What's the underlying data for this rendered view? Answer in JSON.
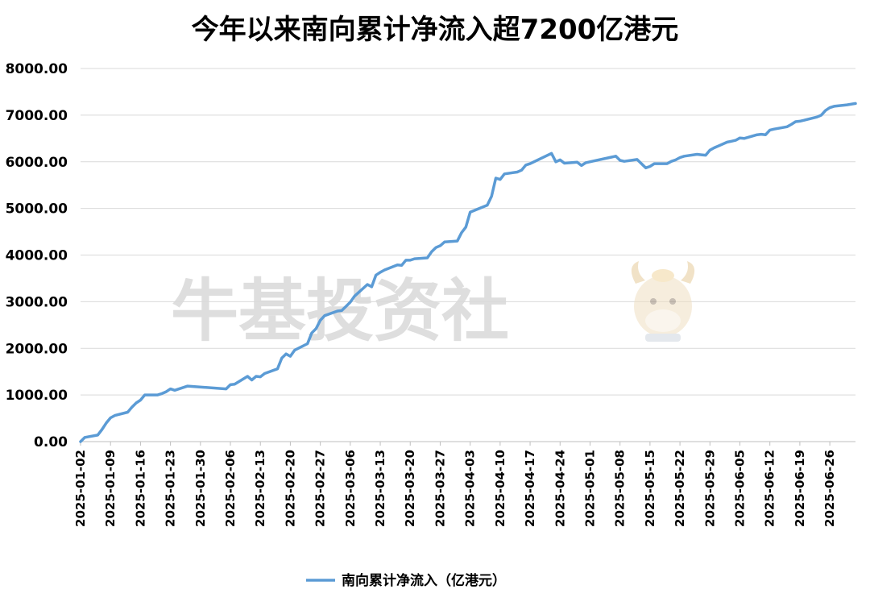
{
  "chart_data": {
    "type": "line",
    "title": "今年以来南向累计净流入超7200亿港元",
    "xlabel": "",
    "ylabel": "",
    "ylim": [
      0,
      8000
    ],
    "y_ticks": [
      "0.00",
      "1000.00",
      "2000.00",
      "3000.00",
      "4000.00",
      "5000.00",
      "6000.00",
      "7000.00",
      "8000.00"
    ],
    "x_ticks": [
      "2025-01-02",
      "2025-01-09",
      "2025-01-16",
      "2025-01-23",
      "2025-01-30",
      "2025-02-06",
      "2025-02-13",
      "2025-02-20",
      "2025-02-27",
      "2025-03-06",
      "2025-03-13",
      "2025-03-20",
      "2025-03-27",
      "2025-04-03",
      "2025-04-10",
      "2025-04-17",
      "2025-04-24",
      "2025-05-01",
      "2025-05-08",
      "2025-05-15",
      "2025-05-22",
      "2025-05-29",
      "2025-06-05",
      "2025-06-12",
      "2025-06-19",
      "2025-06-26"
    ],
    "x_range": [
      "2025-01-02",
      "2025-07-02"
    ],
    "grid": true,
    "legend_position": "bottom",
    "series": [
      {
        "name": "南向累计净流入（亿港元）",
        "color": "#5b9bd5",
        "points": [
          [
            "2025-01-02",
            0
          ],
          [
            "2025-01-03",
            90
          ],
          [
            "2025-01-06",
            140
          ],
          [
            "2025-01-07",
            260
          ],
          [
            "2025-01-08",
            400
          ],
          [
            "2025-01-09",
            510
          ],
          [
            "2025-01-10",
            560
          ],
          [
            "2025-01-13",
            630
          ],
          [
            "2025-01-14",
            740
          ],
          [
            "2025-01-15",
            830
          ],
          [
            "2025-01-16",
            890
          ],
          [
            "2025-01-17",
            1000
          ],
          [
            "2025-01-20",
            1000
          ],
          [
            "2025-01-21",
            1030
          ],
          [
            "2025-01-22",
            1070
          ],
          [
            "2025-01-23",
            1130
          ],
          [
            "2025-01-24",
            1100
          ],
          [
            "2025-01-27",
            1190
          ],
          [
            "2025-02-05",
            1130
          ],
          [
            "2025-02-06",
            1220
          ],
          [
            "2025-02-07",
            1230
          ],
          [
            "2025-02-10",
            1400
          ],
          [
            "2025-02-11",
            1320
          ],
          [
            "2025-02-12",
            1400
          ],
          [
            "2025-02-13",
            1390
          ],
          [
            "2025-02-14",
            1460
          ],
          [
            "2025-02-17",
            1560
          ],
          [
            "2025-02-18",
            1790
          ],
          [
            "2025-02-19",
            1880
          ],
          [
            "2025-02-20",
            1830
          ],
          [
            "2025-02-21",
            1960
          ],
          [
            "2025-02-24",
            2100
          ],
          [
            "2025-02-25",
            2330
          ],
          [
            "2025-02-26",
            2420
          ],
          [
            "2025-02-27",
            2600
          ],
          [
            "2025-02-28",
            2700
          ],
          [
            "2025-03-03",
            2800
          ],
          [
            "2025-03-04",
            2810
          ],
          [
            "2025-03-05",
            2900
          ],
          [
            "2025-03-06",
            2990
          ],
          [
            "2025-03-07",
            3120
          ],
          [
            "2025-03-10",
            3370
          ],
          [
            "2025-03-11",
            3320
          ],
          [
            "2025-03-12",
            3570
          ],
          [
            "2025-03-13",
            3630
          ],
          [
            "2025-03-14",
            3680
          ],
          [
            "2025-03-17",
            3790
          ],
          [
            "2025-03-18",
            3780
          ],
          [
            "2025-03-19",
            3890
          ],
          [
            "2025-03-20",
            3890
          ],
          [
            "2025-03-21",
            3920
          ],
          [
            "2025-03-24",
            3940
          ],
          [
            "2025-03-25",
            4070
          ],
          [
            "2025-03-26",
            4160
          ],
          [
            "2025-03-27",
            4200
          ],
          [
            "2025-03-28",
            4280
          ],
          [
            "2025-03-31",
            4300
          ],
          [
            "2025-04-01",
            4480
          ],
          [
            "2025-04-02",
            4600
          ],
          [
            "2025-04-03",
            4920
          ],
          [
            "2025-04-07",
            5070
          ],
          [
            "2025-04-08",
            5260
          ],
          [
            "2025-04-09",
            5650
          ],
          [
            "2025-04-10",
            5620
          ],
          [
            "2025-04-11",
            5740
          ],
          [
            "2025-04-14",
            5780
          ],
          [
            "2025-04-15",
            5820
          ],
          [
            "2025-04-16",
            5930
          ],
          [
            "2025-04-17",
            5960
          ],
          [
            "2025-04-22",
            6180
          ],
          [
            "2025-04-23",
            6000
          ],
          [
            "2025-04-24",
            6040
          ],
          [
            "2025-04-25",
            5970
          ],
          [
            "2025-04-28",
            5990
          ],
          [
            "2025-04-29",
            5920
          ],
          [
            "2025-04-30",
            5980
          ],
          [
            "2025-05-02",
            6020
          ],
          [
            "2025-05-06",
            6100
          ],
          [
            "2025-05-07",
            6120
          ],
          [
            "2025-05-08",
            6030
          ],
          [
            "2025-05-09",
            6010
          ],
          [
            "2025-05-12",
            6050
          ],
          [
            "2025-05-13",
            5960
          ],
          [
            "2025-05-14",
            5870
          ],
          [
            "2025-05-15",
            5900
          ],
          [
            "2025-05-16",
            5960
          ],
          [
            "2025-05-19",
            5960
          ],
          [
            "2025-05-20",
            6010
          ],
          [
            "2025-05-21",
            6040
          ],
          [
            "2025-05-22",
            6090
          ],
          [
            "2025-05-23",
            6120
          ],
          [
            "2025-05-26",
            6160
          ],
          [
            "2025-05-27",
            6150
          ],
          [
            "2025-05-28",
            6140
          ],
          [
            "2025-05-29",
            6250
          ],
          [
            "2025-05-30",
            6300
          ],
          [
            "2025-06-02",
            6420
          ],
          [
            "2025-06-03",
            6440
          ],
          [
            "2025-06-04",
            6460
          ],
          [
            "2025-06-05",
            6510
          ],
          [
            "2025-06-06",
            6500
          ],
          [
            "2025-06-09",
            6580
          ],
          [
            "2025-06-10",
            6590
          ],
          [
            "2025-06-11",
            6580
          ],
          [
            "2025-06-12",
            6680
          ],
          [
            "2025-06-13",
            6700
          ],
          [
            "2025-06-16",
            6750
          ],
          [
            "2025-06-17",
            6800
          ],
          [
            "2025-06-18",
            6860
          ],
          [
            "2025-06-19",
            6870
          ],
          [
            "2025-06-20",
            6890
          ],
          [
            "2025-06-23",
            6960
          ],
          [
            "2025-06-24",
            7000
          ],
          [
            "2025-06-25",
            7100
          ],
          [
            "2025-06-26",
            7160
          ],
          [
            "2025-06-27",
            7190
          ],
          [
            "2025-06-30",
            7220
          ],
          [
            "2025-07-02",
            7250
          ]
        ]
      }
    ]
  },
  "watermark": {
    "text": "牛基投资社",
    "mascot_icon": "bull-mascot-icon"
  }
}
